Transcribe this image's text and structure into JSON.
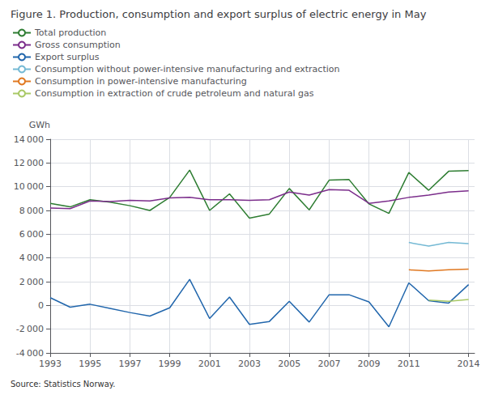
{
  "chart_data": {
    "type": "line",
    "title": "Figure 1. Production, consumption and export surplus of electric energy in May",
    "ylabel": "GWh",
    "annotations": [
      "Source: Statistics Norway."
    ],
    "x": [
      1993,
      1994,
      1995,
      1996,
      1997,
      1998,
      1999,
      2000,
      2001,
      2002,
      2003,
      2004,
      2005,
      2006,
      2007,
      2008,
      2009,
      2010,
      2011,
      2012,
      2013,
      2014
    ],
    "series": [
      {
        "name": "Total production",
        "color": "#2e7d32",
        "values": [
          8600,
          8300,
          8900,
          8700,
          8400,
          8000,
          9100,
          11400,
          8000,
          9400,
          7350,
          7700,
          9850,
          8050,
          10550,
          10600,
          8550,
          7750,
          11200,
          9700,
          11300,
          11350
        ]
      },
      {
        "name": "Gross consumption",
        "color": "#7b2d8b",
        "values": [
          8200,
          8150,
          8800,
          8750,
          8850,
          8800,
          9050,
          9100,
          8900,
          8900,
          8850,
          8900,
          9550,
          9300,
          9750,
          9700,
          8600,
          8800,
          9100,
          9300,
          9550,
          9650
        ]
      },
      {
        "name": "Export surplus",
        "color": "#2166ac",
        "values": [
          650,
          -150,
          100,
          -250,
          -600,
          -900,
          -200,
          2200,
          -1100,
          700,
          -1600,
          -1350,
          350,
          -1400,
          900,
          900,
          300,
          -1800,
          1900,
          400,
          200,
          1750
        ]
      },
      {
        "name": "Consumption without power-intensive manufacturing and extraction",
        "color": "#74b9d4",
        "values": [
          null,
          null,
          null,
          null,
          null,
          null,
          null,
          null,
          null,
          null,
          null,
          null,
          null,
          null,
          null,
          null,
          null,
          null,
          5300,
          5000,
          5300,
          5200
        ]
      },
      {
        "name": "Consumption in power-intensive manufacturing",
        "color": "#e07820",
        "values": [
          null,
          null,
          null,
          null,
          null,
          null,
          null,
          null,
          null,
          null,
          null,
          null,
          null,
          null,
          null,
          null,
          null,
          null,
          3000,
          2900,
          3000,
          3050
        ]
      },
      {
        "name": "Consumption in extraction of crude petroleum and natural gas",
        "color": "#a8c865",
        "values": [
          null,
          null,
          null,
          null,
          null,
          null,
          null,
          null,
          null,
          null,
          null,
          null,
          null,
          null,
          null,
          null,
          null,
          null,
          null,
          450,
          350,
          500
        ]
      }
    ],
    "xlim": [
      1993,
      2014.3
    ],
    "xticks": [
      1993,
      1995,
      1997,
      1999,
      2001,
      2003,
      2005,
      2007,
      2009,
      2011,
      2014
    ],
    "ylim": [
      -4000,
      14000
    ],
    "yticks": [
      {
        "value": -4000,
        "label": "-4 000"
      },
      {
        "value": -2000,
        "label": "-2 000"
      },
      0,
      {
        "value": 2000,
        "label": "2 000"
      },
      {
        "value": 4000,
        "label": "4 000"
      },
      {
        "value": 6000,
        "label": "6 000"
      },
      {
        "value": 8000,
        "label": "8 000"
      },
      {
        "value": 10000,
        "label": "10 000"
      },
      {
        "value": 12000,
        "label": "12 000"
      },
      {
        "value": 14000,
        "label": "14 000"
      }
    ],
    "grid": true,
    "legend": "upper left"
  }
}
